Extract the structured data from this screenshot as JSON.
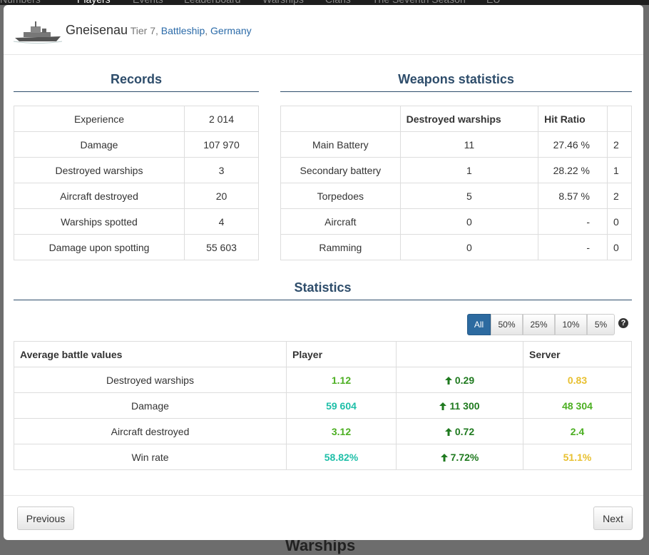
{
  "nav": [
    "Numbers",
    "Players",
    "Events",
    "Leaderboard",
    "Warships",
    "Clans",
    "The Seventh Season",
    "EU"
  ],
  "background_heading": "Warships",
  "header": {
    "name": "Gneisenau",
    "tier": "Tier 7,",
    "class": "Battleship",
    "separator": ",",
    "nation": "Germany"
  },
  "records": {
    "title": "Records",
    "rows": [
      [
        "Experience",
        "2 014"
      ],
      [
        "Damage",
        "107 970"
      ],
      [
        "Destroyed warships",
        "3"
      ],
      [
        "Aircraft destroyed",
        "20"
      ],
      [
        "Warships spotted",
        "4"
      ],
      [
        "Damage upon spotting",
        "55 603"
      ]
    ]
  },
  "weapons": {
    "title": "Weapons statistics",
    "headers": [
      "Destroyed warships",
      "Hit Ratio"
    ],
    "rows": [
      [
        "Main Battery",
        "11",
        "27.46 %",
        "2"
      ],
      [
        "Secondary battery",
        "1",
        "28.22 %",
        "1"
      ],
      [
        "Torpedoes",
        "5",
        "8.57 %",
        "2"
      ],
      [
        "Aircraft",
        "0",
        "-",
        "0"
      ],
      [
        "Ramming",
        "0",
        "-",
        "0"
      ]
    ]
  },
  "statistics": {
    "title": "Statistics",
    "filters": [
      "All",
      "50%",
      "25%",
      "10%",
      "5%"
    ],
    "active_filter": 0,
    "help": "?",
    "headers": [
      "Average battle values",
      "Player",
      "Server"
    ],
    "rows": [
      {
        "label": "Destroyed warships",
        "player": "1.12",
        "player_color": "#4caf22",
        "diff": "0.29",
        "server": "0.83",
        "server_color": "#e8c030"
      },
      {
        "label": "Damage",
        "player": "59 604",
        "player_color": "#1fbfa8",
        "diff": "11 300",
        "server": "48 304",
        "server_color": "#4caf22"
      },
      {
        "label": "Aircraft destroyed",
        "player": "3.12",
        "player_color": "#4caf22",
        "diff": "0.72",
        "server": "2.4",
        "server_color": "#4caf22"
      },
      {
        "label": "Win rate",
        "player": "58.82%",
        "player_color": "#1fbfa8",
        "diff": "7.72%",
        "server": "51.1%",
        "server_color": "#e8c030"
      }
    ],
    "diff_color": "#1f7a1f"
  },
  "footer": {
    "previous": "Previous",
    "next": "Next"
  }
}
